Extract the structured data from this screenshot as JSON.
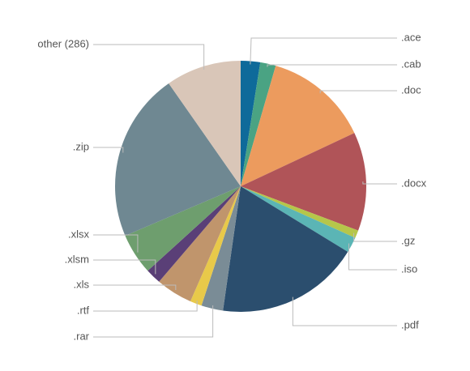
{
  "chart_data": {
    "type": "pie",
    "categories": [
      ".ace",
      ".cab",
      ".doc",
      ".docx",
      ".gz",
      ".iso",
      ".pdf",
      ".rar",
      ".rtf",
      ".xls",
      ".xlsm",
      ".xlsx",
      ".zip",
      "other (286)"
    ],
    "values": [
      2.5,
      2,
      13.5,
      12.7,
      1,
      2,
      18.5,
      2.8,
      1.5,
      4.7,
      2,
      5.3,
      21.7,
      9.7
    ],
    "colors": [
      "#0e6a9a",
      "#4aa383",
      "#ec9b5e",
      "#b05458",
      "#b6c64a",
      "#5bb5b5",
      "#2b4e6e",
      "#7a8c96",
      "#e8c94a",
      "#c0956c",
      "#5a3f77",
      "#6e9e6e",
      "#6f8892",
      "#d9c6b8"
    ]
  }
}
